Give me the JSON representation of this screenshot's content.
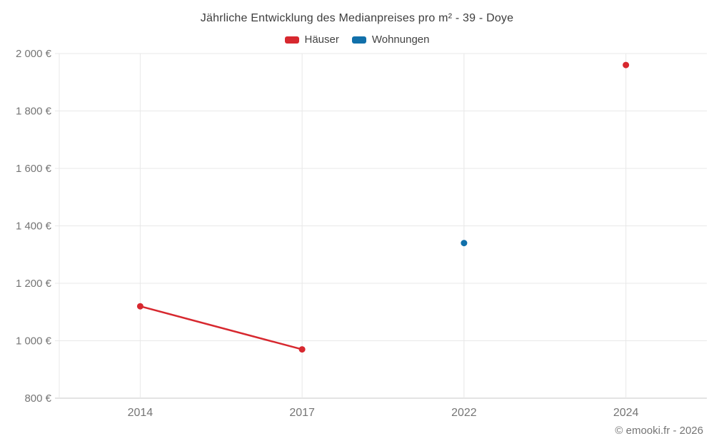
{
  "title": "Jährliche Entwicklung des Medianpreises pro m² - 39 - Doye",
  "footer": "© emooki.fr - 2026",
  "colors": {
    "haeuser": "#d7282f",
    "wohnungen": "#1170aa",
    "gridline": "#e8e8e8",
    "axis_line": "#c9c9c9",
    "tick_text": "#757575"
  },
  "chart_data": {
    "type": "line",
    "title": "Jährliche Entwicklung des Medianpreises pro m² - 39 - Doye",
    "categories": [
      "2014",
      "2017",
      "2022",
      "2024"
    ],
    "series": [
      {
        "name": "Häuser",
        "color": "#d7282f",
        "values": [
          1120,
          970,
          null,
          1960
        ]
      },
      {
        "name": "Wohnungen",
        "color": "#1170aa",
        "values": [
          null,
          null,
          1340,
          null
        ]
      }
    ],
    "xlabel": "",
    "ylabel": "",
    "ylim": [
      800,
      2000
    ],
    "y_ticks": [
      800,
      1000,
      1200,
      1400,
      1600,
      1800,
      2000
    ],
    "y_tick_labels": [
      "800 €",
      "1 000 €",
      "1 200 €",
      "1 400 €",
      "1 600 €",
      "1 800 €",
      "2 000 €"
    ],
    "grid": true,
    "legend_position": "top",
    "currency": "€"
  }
}
